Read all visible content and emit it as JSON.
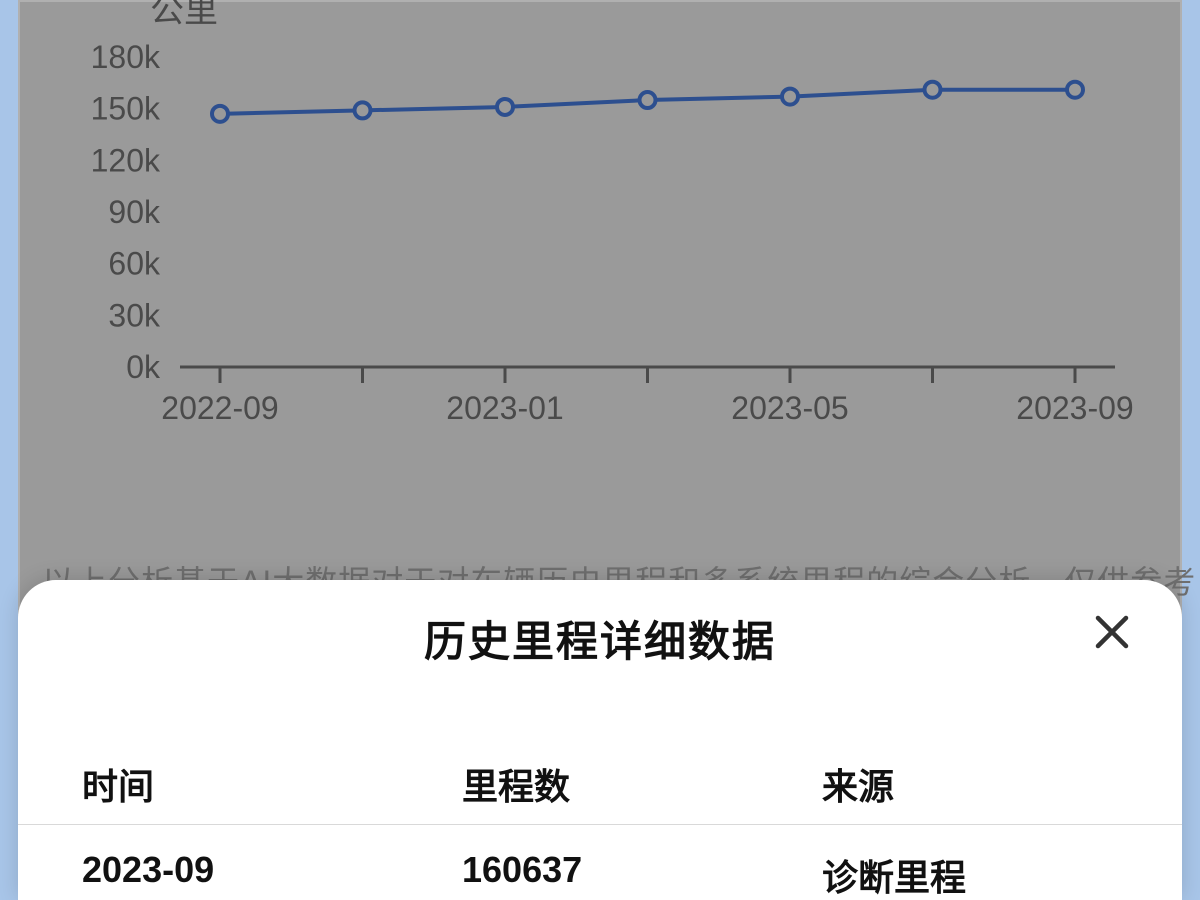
{
  "chart": {
    "type": "line",
    "y_axis_title": "公里",
    "y_ticks": [
      "0k",
      "30k",
      "60k",
      "90k",
      "120k",
      "150k",
      "180k"
    ],
    "y_min": 0,
    "y_max": 180,
    "x_ticks": [
      "2022-09",
      "2023-01",
      "2023-05",
      "2023-09"
    ],
    "categories": [
      "2022-09",
      "2022-11",
      "2023-01",
      "2023-03",
      "2023-05",
      "2023-07",
      "2023-09"
    ],
    "values": [
      147,
      149,
      151,
      155,
      157,
      161,
      161
    ],
    "line_color": "#2d4f8f",
    "marker_fill": "#9a9a9a",
    "marker_stroke": "#2d4f8f",
    "background_color": "#9a9a9a",
    "axis_color": "#4a4a4a",
    "tick_fontsize": 32,
    "title_fontsize": 34,
    "line_width": 4,
    "marker_radius": 8
  },
  "note_text": "以上分析基于AI大数据对于对车辆历史里程和多系统里程的综合分析，仅供参考",
  "sheet": {
    "title": "历史里程详细数据",
    "columns": {
      "time": "时间",
      "km": "里程数",
      "source": "来源"
    },
    "rows": [
      {
        "time": "2023-09",
        "km": "160637",
        "source": "诊断里程"
      }
    ]
  }
}
